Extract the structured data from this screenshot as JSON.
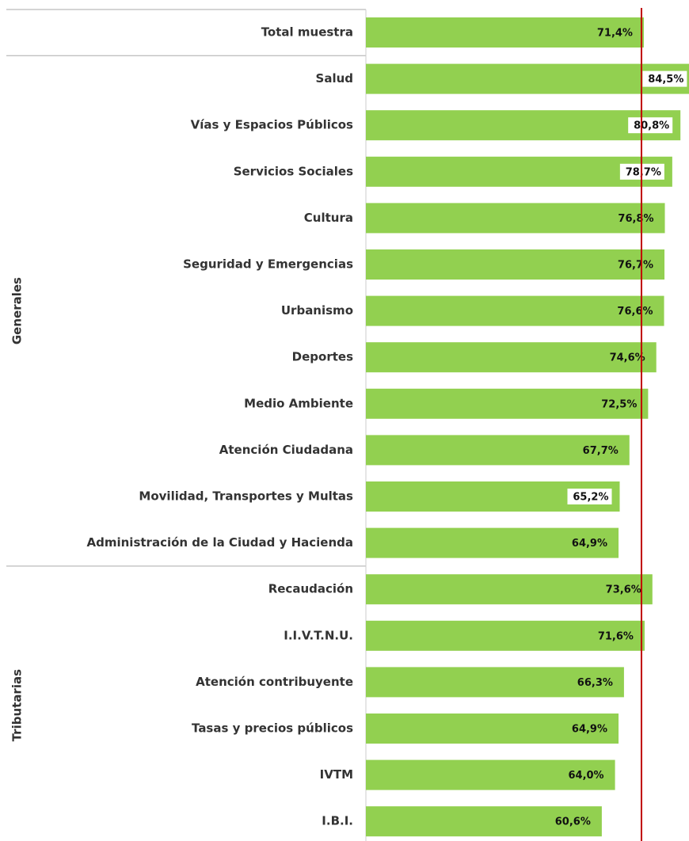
{
  "chart_data": {
    "type": "hbar",
    "categories": [
      "Total muestra",
      "Salud",
      "Vías y Espacios Públicos",
      "Servicios Sociales",
      "Cultura",
      "Seguridad y Emergencias",
      "Urbanismo",
      "Deportes",
      "Medio Ambiente",
      "Atención Ciudadana",
      "Movilidad, Transportes y Multas",
      "Administración de la Ciudad y Hacienda",
      "Recaudación",
      "I.I.V.T.N.U.",
      "Atención contribuyente",
      "Tasas y precios públicos",
      "IVTM",
      "I.B.I."
    ],
    "values": [
      71.4,
      84.5,
      80.8,
      78.7,
      76.8,
      76.7,
      76.6,
      74.6,
      72.5,
      67.7,
      65.2,
      64.9,
      73.6,
      71.6,
      66.3,
      64.9,
      64.0,
      60.6
    ],
    "value_labels": [
      "71,4%",
      "84,5%",
      "80,8%",
      "78,7%",
      "76,8%",
      "76,7%",
      "76,6%",
      "74,6%",
      "72,5%",
      "67,7%",
      "65,2%",
      "64,9%",
      "73,6%",
      "71,6%",
      "66,3%",
      "64,9%",
      "64,0%",
      "60,6%"
    ],
    "value_label_colors": [
      null,
      "#00b050",
      "#00b050",
      "#00b050",
      null,
      null,
      null,
      null,
      null,
      null,
      "#c00000",
      null,
      null,
      null,
      null,
      null,
      null,
      null
    ],
    "groups": [
      {
        "label": "Generales",
        "from": 1,
        "to": 11
      },
      {
        "label": "Tributarias",
        "from": 12,
        "to": 17
      }
    ],
    "color": "#92d050",
    "reference_color": "#c00000",
    "xlim": [
      0,
      83
    ]
  }
}
